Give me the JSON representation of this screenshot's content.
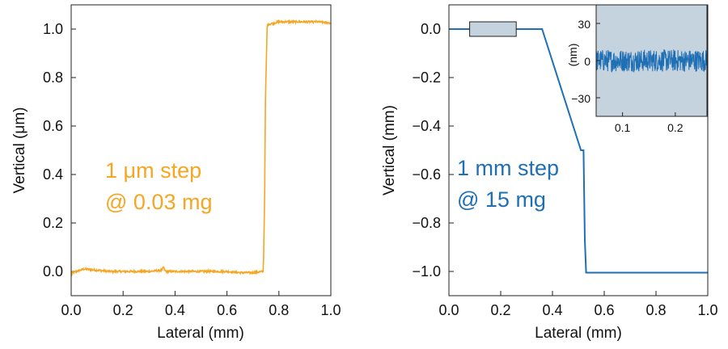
{
  "colors": {
    "left_series": "#f5a623",
    "right_series": "#1f6fb5",
    "inset_background": "#c5d3de",
    "frame": "#222222"
  },
  "chart_data": [
    {
      "type": "line",
      "title": "",
      "xlabel": "Lateral (mm)",
      "ylabel": "Vertical (μm)",
      "xlim": [
        0.0,
        1.0
      ],
      "ylim": [
        -0.1,
        1.1
      ],
      "xticks": [
        0.0,
        0.2,
        0.4,
        0.6,
        0.8,
        1.0
      ],
      "xtick_labels": [
        "0.0",
        "0.2",
        "0.4",
        "0.6",
        "0.8",
        "1.0"
      ],
      "yticks": [
        0.0,
        0.2,
        0.4,
        0.6,
        0.8,
        1.0
      ],
      "ytick_labels": [
        "0.0",
        "0.2",
        "0.4",
        "0.6",
        "0.8",
        "1.0"
      ],
      "grid": false,
      "annotation_lines": [
        "1 μm step",
        "@ 0.03 mg"
      ],
      "series": [
        {
          "color": "#f5a623",
          "x": [
            0.0,
            0.005,
            0.02,
            0.05,
            0.1,
            0.15,
            0.2,
            0.25,
            0.3,
            0.35,
            0.355,
            0.36,
            0.365,
            0.4,
            0.45,
            0.5,
            0.55,
            0.6,
            0.65,
            0.7,
            0.74,
            0.745,
            0.748,
            0.755,
            0.76,
            0.8,
            0.85,
            0.9,
            0.95,
            1.0
          ],
          "y": [
            -0.02,
            -0.005,
            0.0,
            0.01,
            0.005,
            0.0,
            0.0,
            0.0,
            0.0,
            0.005,
            0.02,
            0.005,
            0.0,
            0.0,
            0.0,
            0.0,
            0.0,
            0.0,
            -0.005,
            -0.005,
            0.0,
            0.3,
            0.7,
            1.02,
            1.02,
            1.03,
            1.03,
            1.03,
            1.03,
            1.025
          ],
          "noise": 0.004
        }
      ]
    },
    {
      "type": "line",
      "title": "",
      "xlabel": "Lateral (mm)",
      "ylabel": "Vertical (mm)",
      "xlim": [
        0.0,
        1.0
      ],
      "ylim": [
        -1.1,
        0.1
      ],
      "xticks": [
        0.0,
        0.2,
        0.4,
        0.6,
        0.8,
        1.0
      ],
      "xtick_labels": [
        "0.0",
        "0.2",
        "0.4",
        "0.6",
        "0.8",
        "1.0"
      ],
      "yticks": [
        0.0,
        -0.2,
        -0.4,
        -0.6,
        -0.8,
        -1.0
      ],
      "ytick_labels": [
        "0.0",
        "−0.2",
        "−0.4",
        "−0.6",
        "−0.8",
        "−1.0"
      ],
      "grid": false,
      "annotation_lines": [
        "1 mm step",
        "@ 15 mg"
      ],
      "zoom_box": {
        "x": [
          0.08,
          0.26
        ],
        "y": [
          -0.03,
          0.03
        ]
      },
      "series": [
        {
          "color": "#1f6fb5",
          "x": [
            0.0,
            0.36,
            0.51,
            0.52,
            0.525,
            0.53,
            1.0
          ],
          "y": [
            0.0,
            0.0,
            -0.5,
            -0.5,
            -0.87,
            -1.005,
            -1.005
          ]
        }
      ],
      "inset": {
        "type": "line",
        "ylabel": "(nm)",
        "xlim": [
          0.05,
          0.26
        ],
        "ylim": [
          -45,
          45
        ],
        "xticks": [
          0.1,
          0.2
        ],
        "xtick_labels": [
          "0.1",
          "0.2"
        ],
        "yticks": [
          30,
          0,
          -30
        ],
        "ytick_labels": [
          "30",
          "0",
          "−30"
        ],
        "series": [
          {
            "color": "#1f6fb5",
            "x": [
              0.05,
              0.26
            ],
            "y": [
              0,
              0
            ],
            "noise": 9
          }
        ]
      }
    }
  ]
}
